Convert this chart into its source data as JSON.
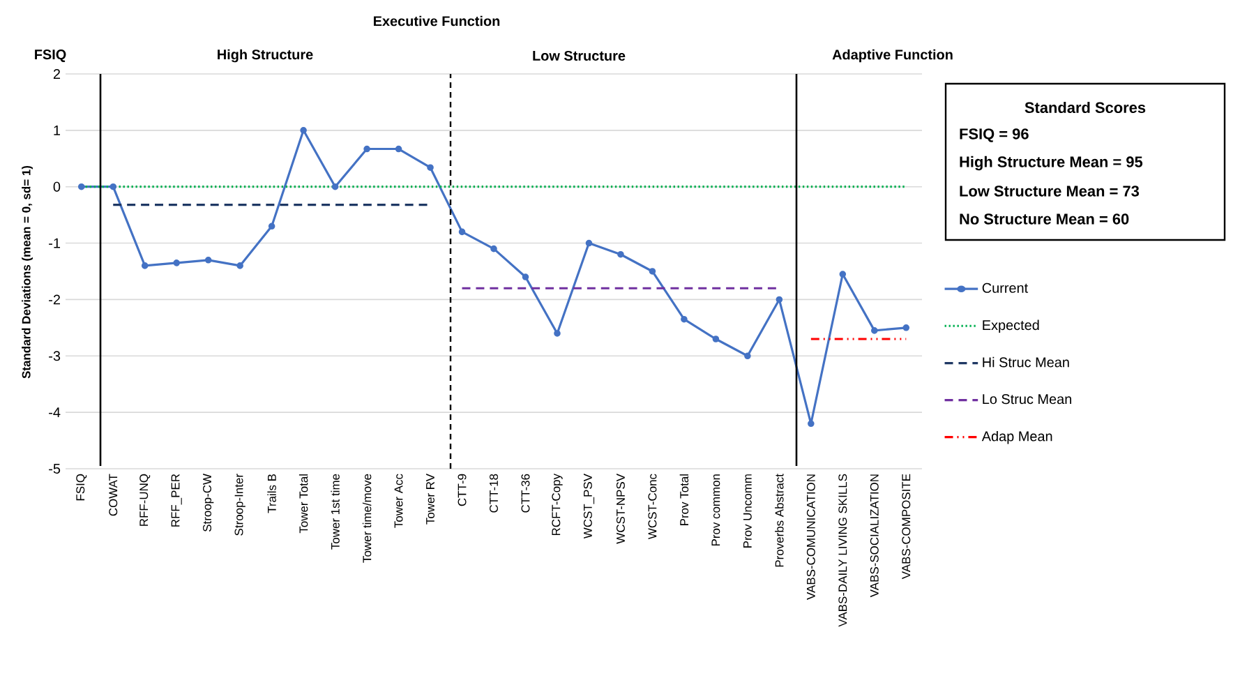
{
  "chart_data": {
    "type": "line",
    "ylabel": "Standard Deviations (mean = 0, sd= 1)",
    "categories": [
      "FSIQ",
      "COWAT",
      "RFF-UNQ",
      "RFF_PER",
      "Stroop-CW",
      "Stroop-Inter",
      "Trails B",
      "Tower Total",
      "Tower 1st time",
      "Tower time/move",
      "Tower Acc",
      "Tower RV",
      "CTT-9",
      "CTT-18",
      "CTT-36",
      "RCFT-Copy",
      "WCST_PSV",
      "WCST-NPSV",
      "WCST-Conc",
      "Prov Total",
      "Prov common",
      "Prov Uncomm",
      "Proverbs Abstract",
      "VABS-COMUNICATION",
      "VABS-DAILY LIVING SKILLS",
      "VABS-SOCIALIZATION",
      "VABS-COMPOSITE"
    ],
    "series": [
      {
        "name": "Current",
        "color": "#4472c4",
        "marker": "circle",
        "line_style": "solid",
        "values": [
          0,
          0,
          -1.4,
          -1.35,
          -1.3,
          -1.4,
          -0.7,
          1.0,
          0,
          0.67,
          0.67,
          0.34,
          -0.8,
          -1.1,
          -1.6,
          -2.6,
          -1.0,
          -1.2,
          -1.5,
          -2.35,
          -2.7,
          -3.0,
          -2.0,
          -4.2,
          -1.55,
          -2.55,
          -2.5
        ]
      },
      {
        "name": "Expected",
        "color": "#00b050",
        "marker": "none",
        "line_style": "dotted",
        "values": [
          0,
          0,
          0,
          0,
          0,
          0,
          0,
          0,
          0,
          0,
          0,
          0,
          0,
          0,
          0,
          0,
          0,
          0,
          0,
          0,
          0,
          0,
          0,
          0,
          0,
          0,
          0
        ]
      },
      {
        "name": "Hi Struc Mean",
        "color": "#1f3864",
        "marker": "none",
        "line_style": "dashed",
        "values": [
          null,
          -0.32,
          -0.32,
          -0.32,
          -0.32,
          -0.32,
          -0.32,
          -0.32,
          -0.32,
          -0.32,
          -0.32,
          -0.32,
          null,
          null,
          null,
          null,
          null,
          null,
          null,
          null,
          null,
          null,
          null,
          null,
          null,
          null,
          null
        ]
      },
      {
        "name": "Lo Struc Mean",
        "color": "#7030a0",
        "marker": "none",
        "line_style": "dashed",
        "values": [
          null,
          null,
          null,
          null,
          null,
          null,
          null,
          null,
          null,
          null,
          null,
          null,
          -1.8,
          -1.8,
          -1.8,
          -1.8,
          -1.8,
          -1.8,
          -1.8,
          -1.8,
          -1.8,
          -1.8,
          -1.8,
          null,
          null,
          null,
          null
        ]
      },
      {
        "name": "Adap Mean",
        "color": "#ff0000",
        "marker": "none",
        "line_style": "dashdot",
        "values": [
          null,
          null,
          null,
          null,
          null,
          null,
          null,
          null,
          null,
          null,
          null,
          null,
          null,
          null,
          null,
          null,
          null,
          null,
          null,
          null,
          null,
          null,
          null,
          -2.7,
          -2.7,
          -2.7,
          -2.7
        ]
      }
    ],
    "ylim": [
      -5,
      2
    ],
    "yticks": [
      -5,
      -4,
      -3,
      -2,
      -1,
      0,
      1,
      2
    ],
    "grid": "y",
    "legend": "right",
    "annotations": [
      "Executive Function",
      "FSIQ",
      "High Structure",
      "Low Structure",
      "Adaptive Function",
      "Standard Scores",
      "FSIQ = 96",
      "High Structure Mean = 95",
      "Low Structure Mean = 73",
      "No Structure Mean = 60"
    ]
  }
}
